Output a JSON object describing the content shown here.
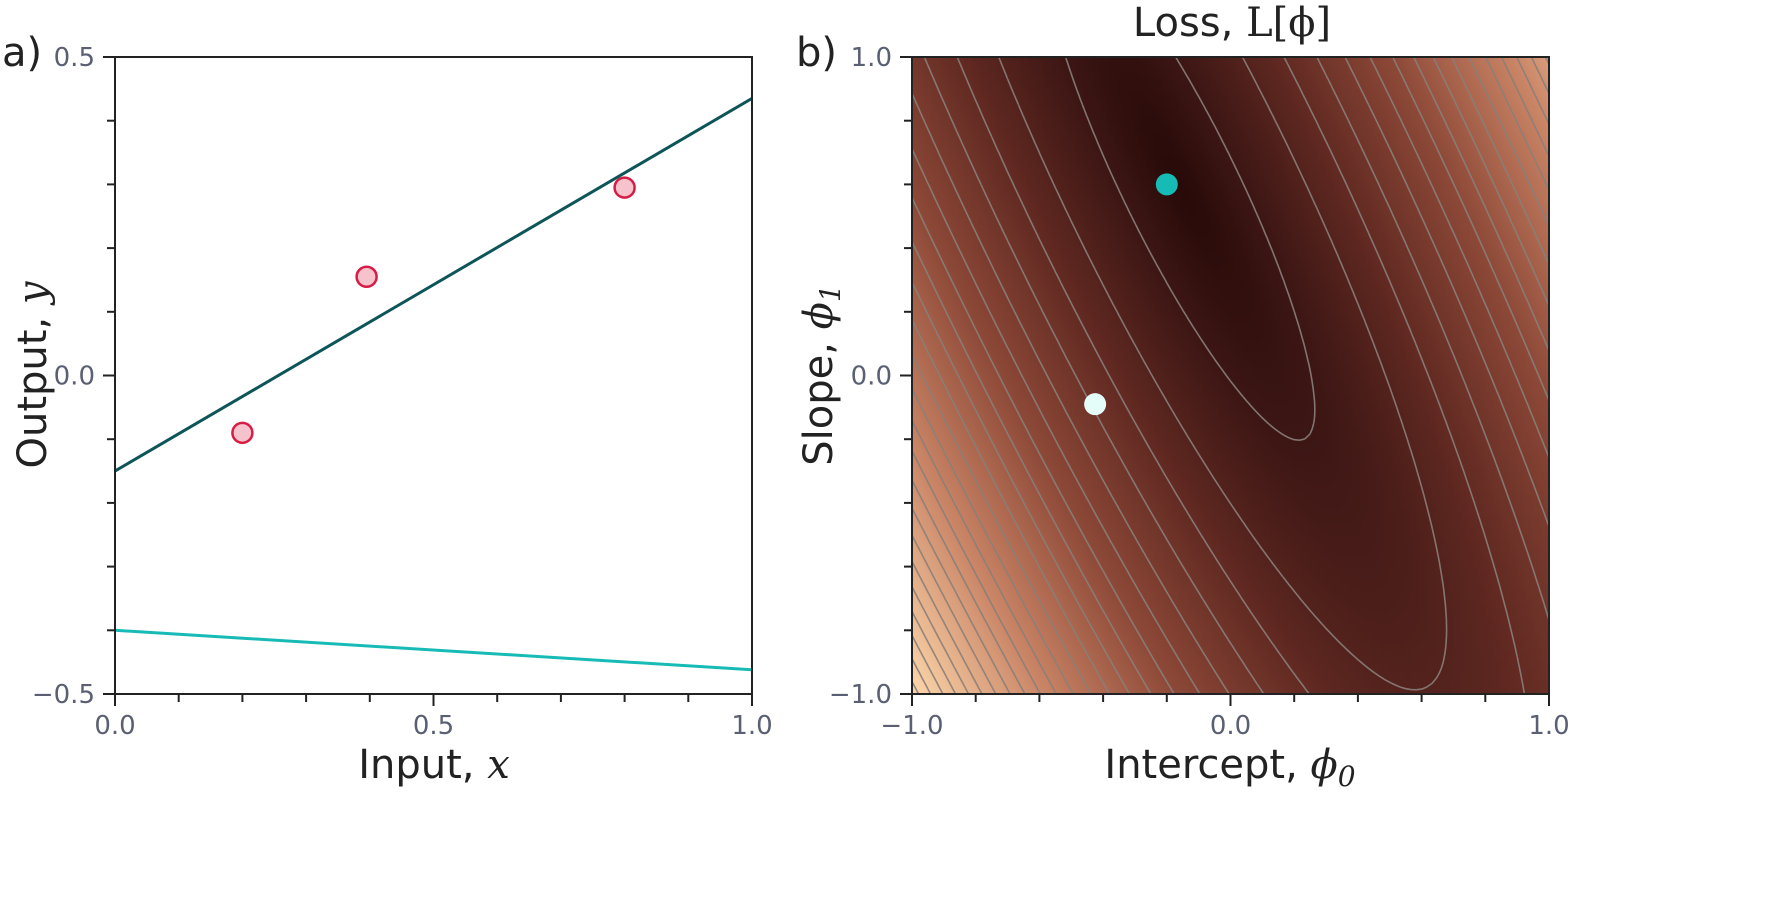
{
  "chart_data": [
    {
      "type": "line",
      "panel_label": "a)",
      "title": "",
      "xlabel_text": "Input, ",
      "xlabel_symbol": "x",
      "ylabel_text": "Output, ",
      "ylabel_symbol": "y",
      "xlim": [
        0.0,
        1.0
      ],
      "ylim": [
        -0.5,
        0.5
      ],
      "xticks": [
        "0.0",
        "0.5",
        "1.0"
      ],
      "xtick_values": [
        0.0,
        0.5,
        1.0
      ],
      "yticks": [
        "−0.5",
        "0.0",
        "0.5"
      ],
      "ytick_values": [
        -0.5,
        0.0,
        0.5
      ],
      "x_minor_step": 0.1,
      "y_minor_step": 0.1,
      "points": [
        {
          "x": 0.2,
          "y": -0.09
        },
        {
          "x": 0.395,
          "y": 0.155
        },
        {
          "x": 0.8,
          "y": 0.295
        }
      ],
      "lines": [
        {
          "intercept": -0.15,
          "slope": 0.585,
          "color": "#0d5559"
        },
        {
          "intercept": -0.4,
          "slope": -0.062,
          "color": "#17bbb6"
        }
      ],
      "point_fill": "#f6c2cb",
      "point_edge": "#d51d45"
    },
    {
      "type": "heatmap",
      "panel_label": "b)",
      "title_text": "Loss, ",
      "title_symbol": "L[ϕ]",
      "xlabel_text": "Intercept, ",
      "xlabel_symbol": "ϕ",
      "xlabel_sub": "0",
      "ylabel_text": "Slope, ",
      "ylabel_symbol": "ϕ",
      "ylabel_sub": "1",
      "xlim": [
        -1.0,
        1.0
      ],
      "ylim": [
        -1.0,
        1.0
      ],
      "xticks": [
        "−1.0",
        "0.0",
        "1.0"
      ],
      "xtick_values": [
        -1.0,
        0.0,
        1.0
      ],
      "yticks": [
        "−1.0",
        "0.0",
        "1.0"
      ],
      "ytick_values": [
        -1.0,
        0.0,
        1.0
      ],
      "x_minor_step": 0.2,
      "y_minor_step": 0.2,
      "contour_color": "#8a7e7a",
      "points": [
        {
          "x": -0.2,
          "y": 0.6,
          "color": "#17bbb6"
        },
        {
          "x": -0.425,
          "y": -0.09,
          "color": "#e4fdf8"
        }
      ]
    }
  ]
}
